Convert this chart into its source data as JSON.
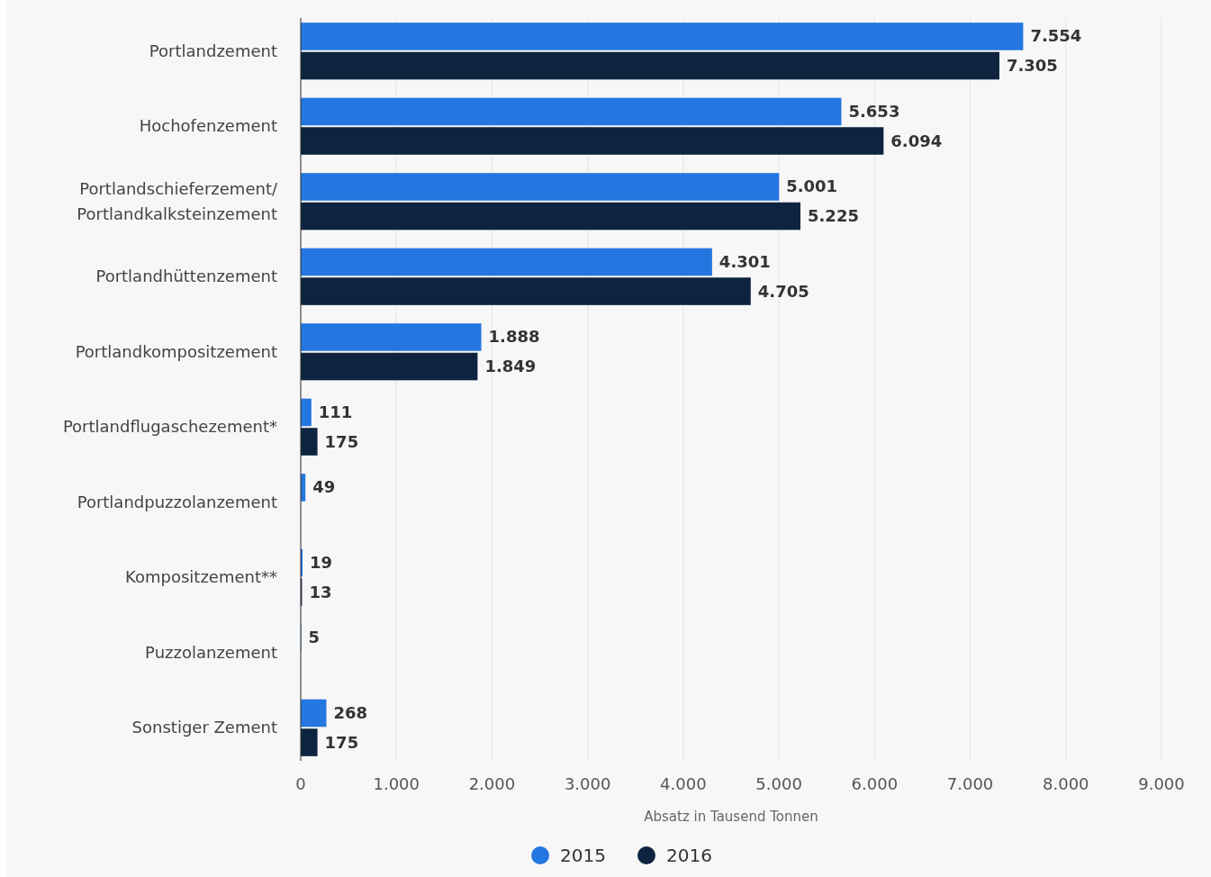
{
  "chart_data": {
    "type": "bar",
    "orientation": "horizontal",
    "xlabel": "Absatz in Tausend Tonnen",
    "categories": [
      "Portlandzement",
      "Hochofenzement",
      "Portlandschieferzement/\nPortlandkalksteinzement",
      "Portlandhüttenzement",
      "Portlandkompositzement",
      "Portlandflugaschezement*",
      "Portlandpuzzolanzement",
      "Kompositzement**",
      "Puzzolanzement",
      "Sonstiger Zement"
    ],
    "series": [
      {
        "name": "2015",
        "color": "#2476e0",
        "values": [
          7554,
          5653,
          5001,
          4301,
          1888,
          111,
          49,
          19,
          5,
          268
        ],
        "value_labels": [
          "7.554",
          "5.653",
          "5.001",
          "4.301",
          "1.888",
          "111",
          "49",
          "19",
          "5",
          "268"
        ]
      },
      {
        "name": "2016",
        "color": "#0e2340",
        "values": [
          7305,
          6094,
          5225,
          4705,
          1849,
          175,
          null,
          13,
          null,
          175
        ],
        "value_labels": [
          "7.305",
          "6.094",
          "5.225",
          "4.705",
          "1.849",
          "175",
          null,
          "13",
          null,
          "175"
        ]
      }
    ],
    "xlim": [
      0,
      9000
    ],
    "xticks": [
      0,
      {
        "value": 1000,
        "label": "1.000"
      },
      {
        "value": 2000,
        "label": "2.000"
      },
      {
        "value": 3000,
        "label": "3.000"
      },
      {
        "value": 4000,
        "label": "4.000"
      },
      {
        "value": 5000,
        "label": "5.000"
      },
      {
        "value": 6000,
        "label": "6.000"
      },
      {
        "value": 7000,
        "label": "7.000"
      },
      {
        "value": 8000,
        "label": "8.000"
      },
      {
        "value": 9000,
        "label": "9.000"
      }
    ],
    "grid": "x",
    "legend": "bottom"
  }
}
